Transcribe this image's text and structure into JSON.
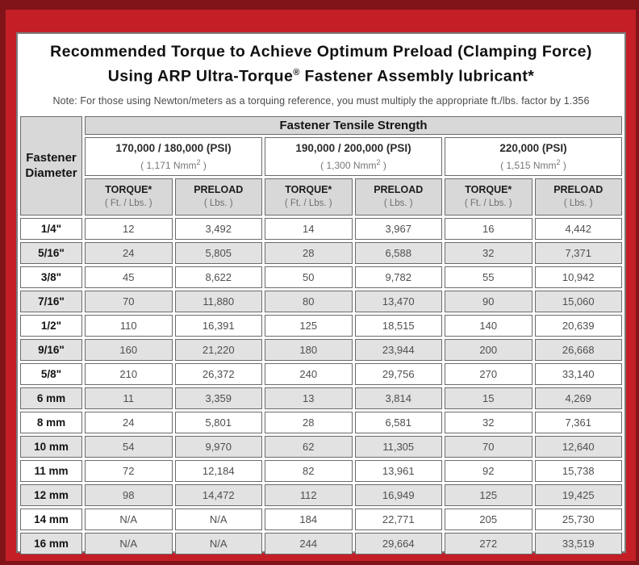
{
  "colors": {
    "frame_red": "#C41E27",
    "frame_dark": "#801419",
    "head_gray": "#D8D8D8",
    "stripe_gray": "#E2E2E2"
  },
  "title": {
    "line1": "Recommended Torque to Achieve Optimum Preload (Clamping Force)",
    "line2_pre": "Using ARP Ultra-Torque",
    "line2_sup": "®",
    "line2_post": " Fastener Assembly lubricant*"
  },
  "note": "Note: For those using Newton/meters as a torquing reference, you must multiply the appropriate ft./lbs. factor by 1.356",
  "table": {
    "tensile_header": "Fastener Tensile Strength",
    "diameter_header": {
      "line1": "Fastener",
      "line2": "Diameter"
    },
    "psi_groups": [
      {
        "psi": "170,000 / 180,000 (PSI)",
        "nmm_pre": "( 1,171 Nmm",
        "nmm_sup": "2",
        "nmm_post": " )"
      },
      {
        "psi": "190,000 / 200,000 (PSI)",
        "nmm_pre": "( 1,300 Nmm",
        "nmm_sup": "2",
        "nmm_post": " )"
      },
      {
        "psi": "220,000 (PSI)",
        "nmm_pre": "( 1,515 Nmm",
        "nmm_sup": "2",
        "nmm_post": " )"
      }
    ],
    "col_headers": {
      "torque_label": "TORQUE*",
      "torque_sub": "( Ft. / Lbs. )",
      "preload_label": "PRELOAD",
      "preload_sub": "( Lbs. )"
    },
    "rows": [
      {
        "d": "1/4\"",
        "v": [
          "12",
          "3,492",
          "14",
          "3,967",
          "16",
          "4,442"
        ]
      },
      {
        "d": "5/16\"",
        "v": [
          "24",
          "5,805",
          "28",
          "6,588",
          "32",
          "7,371"
        ]
      },
      {
        "d": "3/8\"",
        "v": [
          "45",
          "8,622",
          "50",
          "9,782",
          "55",
          "10,942"
        ]
      },
      {
        "d": "7/16\"",
        "v": [
          "70",
          "11,880",
          "80",
          "13,470",
          "90",
          "15,060"
        ]
      },
      {
        "d": "1/2\"",
        "v": [
          "110",
          "16,391",
          "125",
          "18,515",
          "140",
          "20,639"
        ]
      },
      {
        "d": "9/16\"",
        "v": [
          "160",
          "21,220",
          "180",
          "23,944",
          "200",
          "26,668"
        ]
      },
      {
        "d": "5/8\"",
        "v": [
          "210",
          "26,372",
          "240",
          "29,756",
          "270",
          "33,140"
        ]
      },
      {
        "d": "6 mm",
        "v": [
          "11",
          "3,359",
          "13",
          "3,814",
          "15",
          "4,269"
        ]
      },
      {
        "d": "8 mm",
        "v": [
          "24",
          "5,801",
          "28",
          "6,581",
          "32",
          "7,361"
        ]
      },
      {
        "d": "10 mm",
        "v": [
          "54",
          "9,970",
          "62",
          "11,305",
          "70",
          "12,640"
        ]
      },
      {
        "d": "11 mm",
        "v": [
          "72",
          "12,184",
          "82",
          "13,961",
          "92",
          "15,738"
        ]
      },
      {
        "d": "12 mm",
        "v": [
          "98",
          "14,472",
          "112",
          "16,949",
          "125",
          "19,425"
        ]
      },
      {
        "d": "14 mm",
        "v": [
          "N/A",
          "N/A",
          "184",
          "22,771",
          "205",
          "25,730"
        ]
      },
      {
        "d": "16 mm",
        "v": [
          "N/A",
          "N/A",
          "244",
          "29,664",
          "272",
          "33,519"
        ]
      }
    ]
  }
}
